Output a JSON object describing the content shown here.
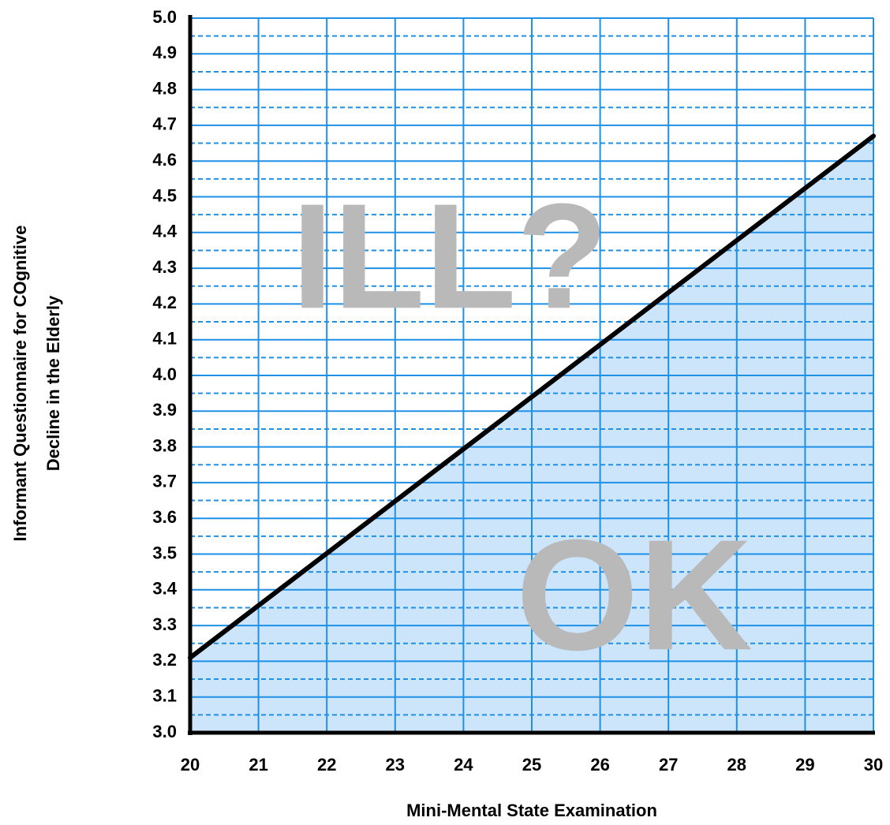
{
  "chart_data": {
    "type": "line",
    "title": "",
    "xlabel": "Mini-Mental State Examination",
    "ylabel_lines": [
      "Informant Questionnaire for COgnitive",
      "Decline in the Elderly"
    ],
    "xlim": [
      20,
      30
    ],
    "ylim": [
      3.0,
      5.0
    ],
    "x_ticks": [
      "20",
      "21",
      "22",
      "23",
      "24",
      "25",
      "26",
      "27",
      "28",
      "29",
      "30"
    ],
    "y_ticks": [
      "3.0",
      "3.1",
      "3.2",
      "3.3",
      "3.4",
      "3.5",
      "3.6",
      "3.7",
      "3.8",
      "3.9",
      "4.0",
      "4.1",
      "4.2",
      "4.3",
      "4.4",
      "4.5",
      "4.6",
      "4.7",
      "4.8",
      "4.9",
      "5.0"
    ],
    "y_ticks_values": [
      3.0,
      3.1,
      3.2,
      3.3,
      3.4,
      3.5,
      3.6,
      3.7,
      3.8,
      3.9,
      4.0,
      4.1,
      4.2,
      4.3,
      4.4,
      4.5,
      4.6,
      4.7,
      4.8,
      4.9,
      5.0
    ],
    "x_ticks_values": [
      20,
      21,
      22,
      23,
      24,
      25,
      26,
      27,
      28,
      29,
      30
    ],
    "minor_gridlines": "dashed at half steps",
    "series": [
      {
        "x": [
          20,
          30
        ],
        "y": [
          3.21,
          4.67
        ],
        "color": "#000000"
      }
    ],
    "shaded_region": {
      "description": "area below the line",
      "color": "#cce5fb"
    },
    "region_labels": [
      {
        "text": "ILL?",
        "x": 23.8,
        "y": 4.3
      },
      {
        "text": "OK",
        "x": 26.5,
        "y": 3.35
      }
    ],
    "grid": true,
    "colors": {
      "grid": "#1e90e6",
      "fill": "#cce5fb",
      "line": "#000000",
      "axis": "#000000",
      "region_text": "#b9b9b9"
    }
  }
}
